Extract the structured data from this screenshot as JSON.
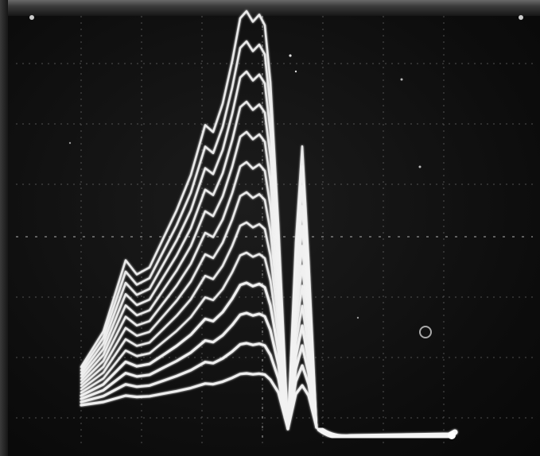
{
  "image": {
    "grid_divisions": {
      "horizontal": 8,
      "vertical": 7
    },
    "trace_count": 13,
    "colors": {
      "background": "#121212",
      "trace": "#f2f2f2",
      "graticule": "#8a8a8a"
    }
  }
}
